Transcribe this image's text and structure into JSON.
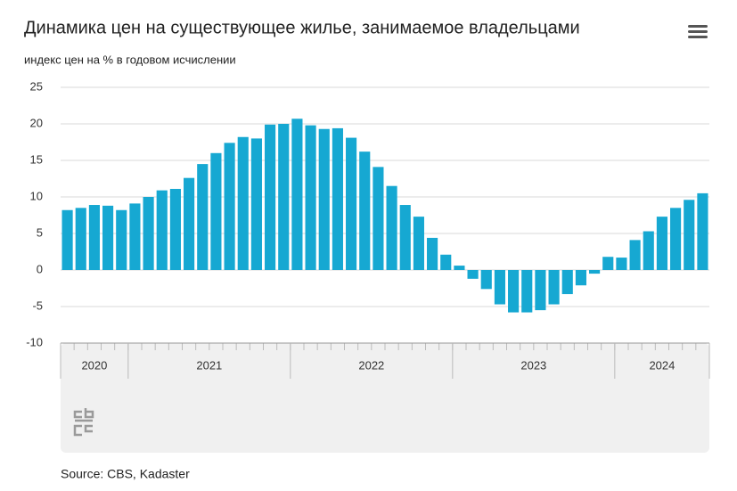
{
  "chart_data": {
    "type": "bar",
    "title": "Динамика цен на существующее жилье, занимаемое владельцами",
    "subtitle": "индекс цен на % в годовом исчислении",
    "source": "Source: CBS, Kadaster",
    "color": "#16a8d2",
    "grid": true,
    "ylim": [
      -10,
      25
    ],
    "yticks": [
      -10,
      -5,
      0,
      5,
      10,
      15,
      20,
      25
    ],
    "groups": [
      {
        "label": "2020",
        "count": 5
      },
      {
        "label": "2021",
        "count": 12
      },
      {
        "label": "2022",
        "count": 12
      },
      {
        "label": "2023",
        "count": 12
      },
      {
        "label": "2024",
        "count": 7
      }
    ],
    "categories": [
      null,
      null,
      null,
      null,
      null,
      null,
      null,
      null,
      null,
      null,
      null,
      null,
      null,
      null,
      null,
      null,
      null,
      null,
      null,
      null,
      null,
      null,
      null,
      null,
      null,
      null,
      null,
      null,
      null,
      null,
      null,
      null,
      null,
      null,
      null,
      null,
      null,
      null,
      null,
      null,
      null,
      null,
      null,
      null,
      null,
      null,
      null,
      null
    ],
    "values": [
      8.2,
      8.5,
      8.9,
      8.8,
      8.2,
      9.1,
      10.0,
      10.9,
      11.1,
      12.6,
      14.5,
      16.0,
      17.4,
      18.2,
      18.0,
      19.9,
      20.0,
      20.7,
      19.8,
      19.3,
      19.4,
      18.1,
      16.2,
      14.1,
      11.5,
      8.9,
      7.3,
      4.4,
      2.1,
      0.6,
      -1.2,
      -2.6,
      -4.7,
      -5.8,
      -5.8,
      -5.5,
      -4.7,
      -3.3,
      -2.1,
      -0.5,
      1.8,
      1.7,
      4.1,
      5.3,
      7.3,
      8.5,
      9.6,
      10.5
    ]
  }
}
